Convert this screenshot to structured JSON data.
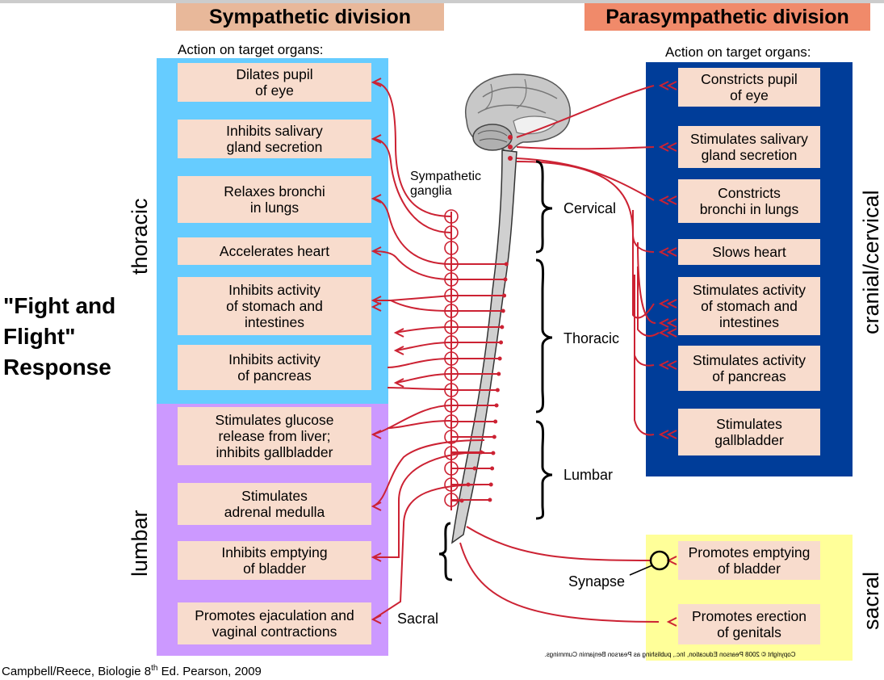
{
  "headers": {
    "sympathetic": "Sympathetic division",
    "parasympathetic": "Parasympathetic division"
  },
  "action_label_left": "Action on target organs:",
  "action_label_right": "Action on target organs:",
  "sympathetic_organs": [
    "Dilates pupil\nof eye",
    "Inhibits salivary\ngland secretion",
    "Relaxes bronchi\nin lungs",
    "Accelerates heart",
    "Inhibits activity\nof stomach and\nintestines",
    "Inhibits activity\nof pancreas",
    "Stimulates glucose\nrelease from liver;\ninhibits gallbladder",
    "Stimulates\nadrenal medulla",
    "Inhibits emptying\nof bladder",
    "Promotes ejaculation and\nvaginal contractions"
  ],
  "parasympathetic_organs": [
    "Constricts pupil\nof eye",
    "Stimulates salivary\ngland secretion",
    "Constricts\nbronchi in lungs",
    "Slows heart",
    "Stimulates activity\nof stomach and\nintestines",
    "Stimulates activity\nof pancreas",
    "Stimulates\ngallbladder",
    "Promotes emptying\nof bladder",
    "Promotes erection\nof genitals"
  ],
  "region_labels": {
    "thoracic": "thoracic",
    "lumbar": "lumbar",
    "cranial_cervical": "cranial/cervical",
    "sacral": "sacral"
  },
  "spine_labels": {
    "sympathetic_ganglia": "Sympathetic\nganglia",
    "cervical": "Cervical",
    "thoracic": "Thoracic",
    "lumbar": "Lumbar",
    "sacral": "Sacral",
    "synapse": "Synapse"
  },
  "fight_flight": "\"Fight and\nFlight\"\nResponse",
  "citation": "Campbell/Reece, Biologie 8",
  "citation_sup": "th",
  "citation_rest": " Ed. Pearson, 2009",
  "copyright": "Copyright © 2008 Pearson Education, Inc., publishing as Pearson Benjamin Cummings.",
  "colors": {
    "sympathetic_thoracic_bg": "#66ccff",
    "sympathetic_lumbar_bg": "#cc99ff",
    "parasympathetic_bg": "#003d99",
    "sacral_bg": "#ffff99",
    "organ_box": "#f8dccd",
    "nerve": "#cc2233",
    "header_left": "#e8b89a",
    "header_right": "#f08a6a"
  }
}
